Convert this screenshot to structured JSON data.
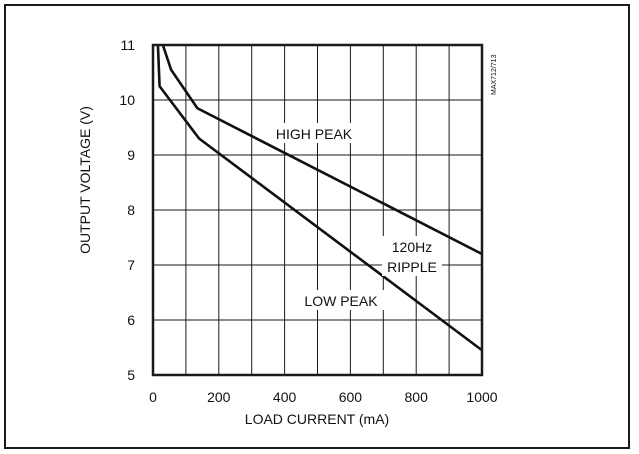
{
  "chart_data": {
    "type": "line",
    "title": "",
    "xlabel": "LOAD CURRENT (mA)",
    "ylabel": "OUTPUT VOLTAGE (V)",
    "xlim": [
      0,
      1000
    ],
    "ylim": [
      5,
      11
    ],
    "grid": true,
    "x_ticks": [
      0,
      200,
      400,
      600,
      800,
      1000
    ],
    "y_ticks": [
      5,
      6,
      7,
      8,
      9,
      10,
      11
    ],
    "x_tick_labels": [
      "0",
      "200",
      "400",
      "600",
      "800",
      "1000"
    ],
    "y_tick_labels": [
      "5",
      "6",
      "7",
      "8",
      "9",
      "10",
      "11"
    ],
    "series": [
      {
        "name": "HIGH PEAK",
        "x": [
          30,
          55,
          135,
          1000
        ],
        "y": [
          11.0,
          10.55,
          9.85,
          7.2
        ]
      },
      {
        "name": "LOW PEAK",
        "x": [
          15,
          20,
          140,
          1000
        ],
        "y": [
          11.0,
          10.25,
          9.3,
          5.45
        ]
      }
    ],
    "annotations": {
      "high_peak": "HIGH PEAK",
      "ripple_line1": "120Hz",
      "ripple_line2": "RIPPLE",
      "low_peak": "LOW PEAK",
      "part_code": "MAX712/713"
    }
  }
}
